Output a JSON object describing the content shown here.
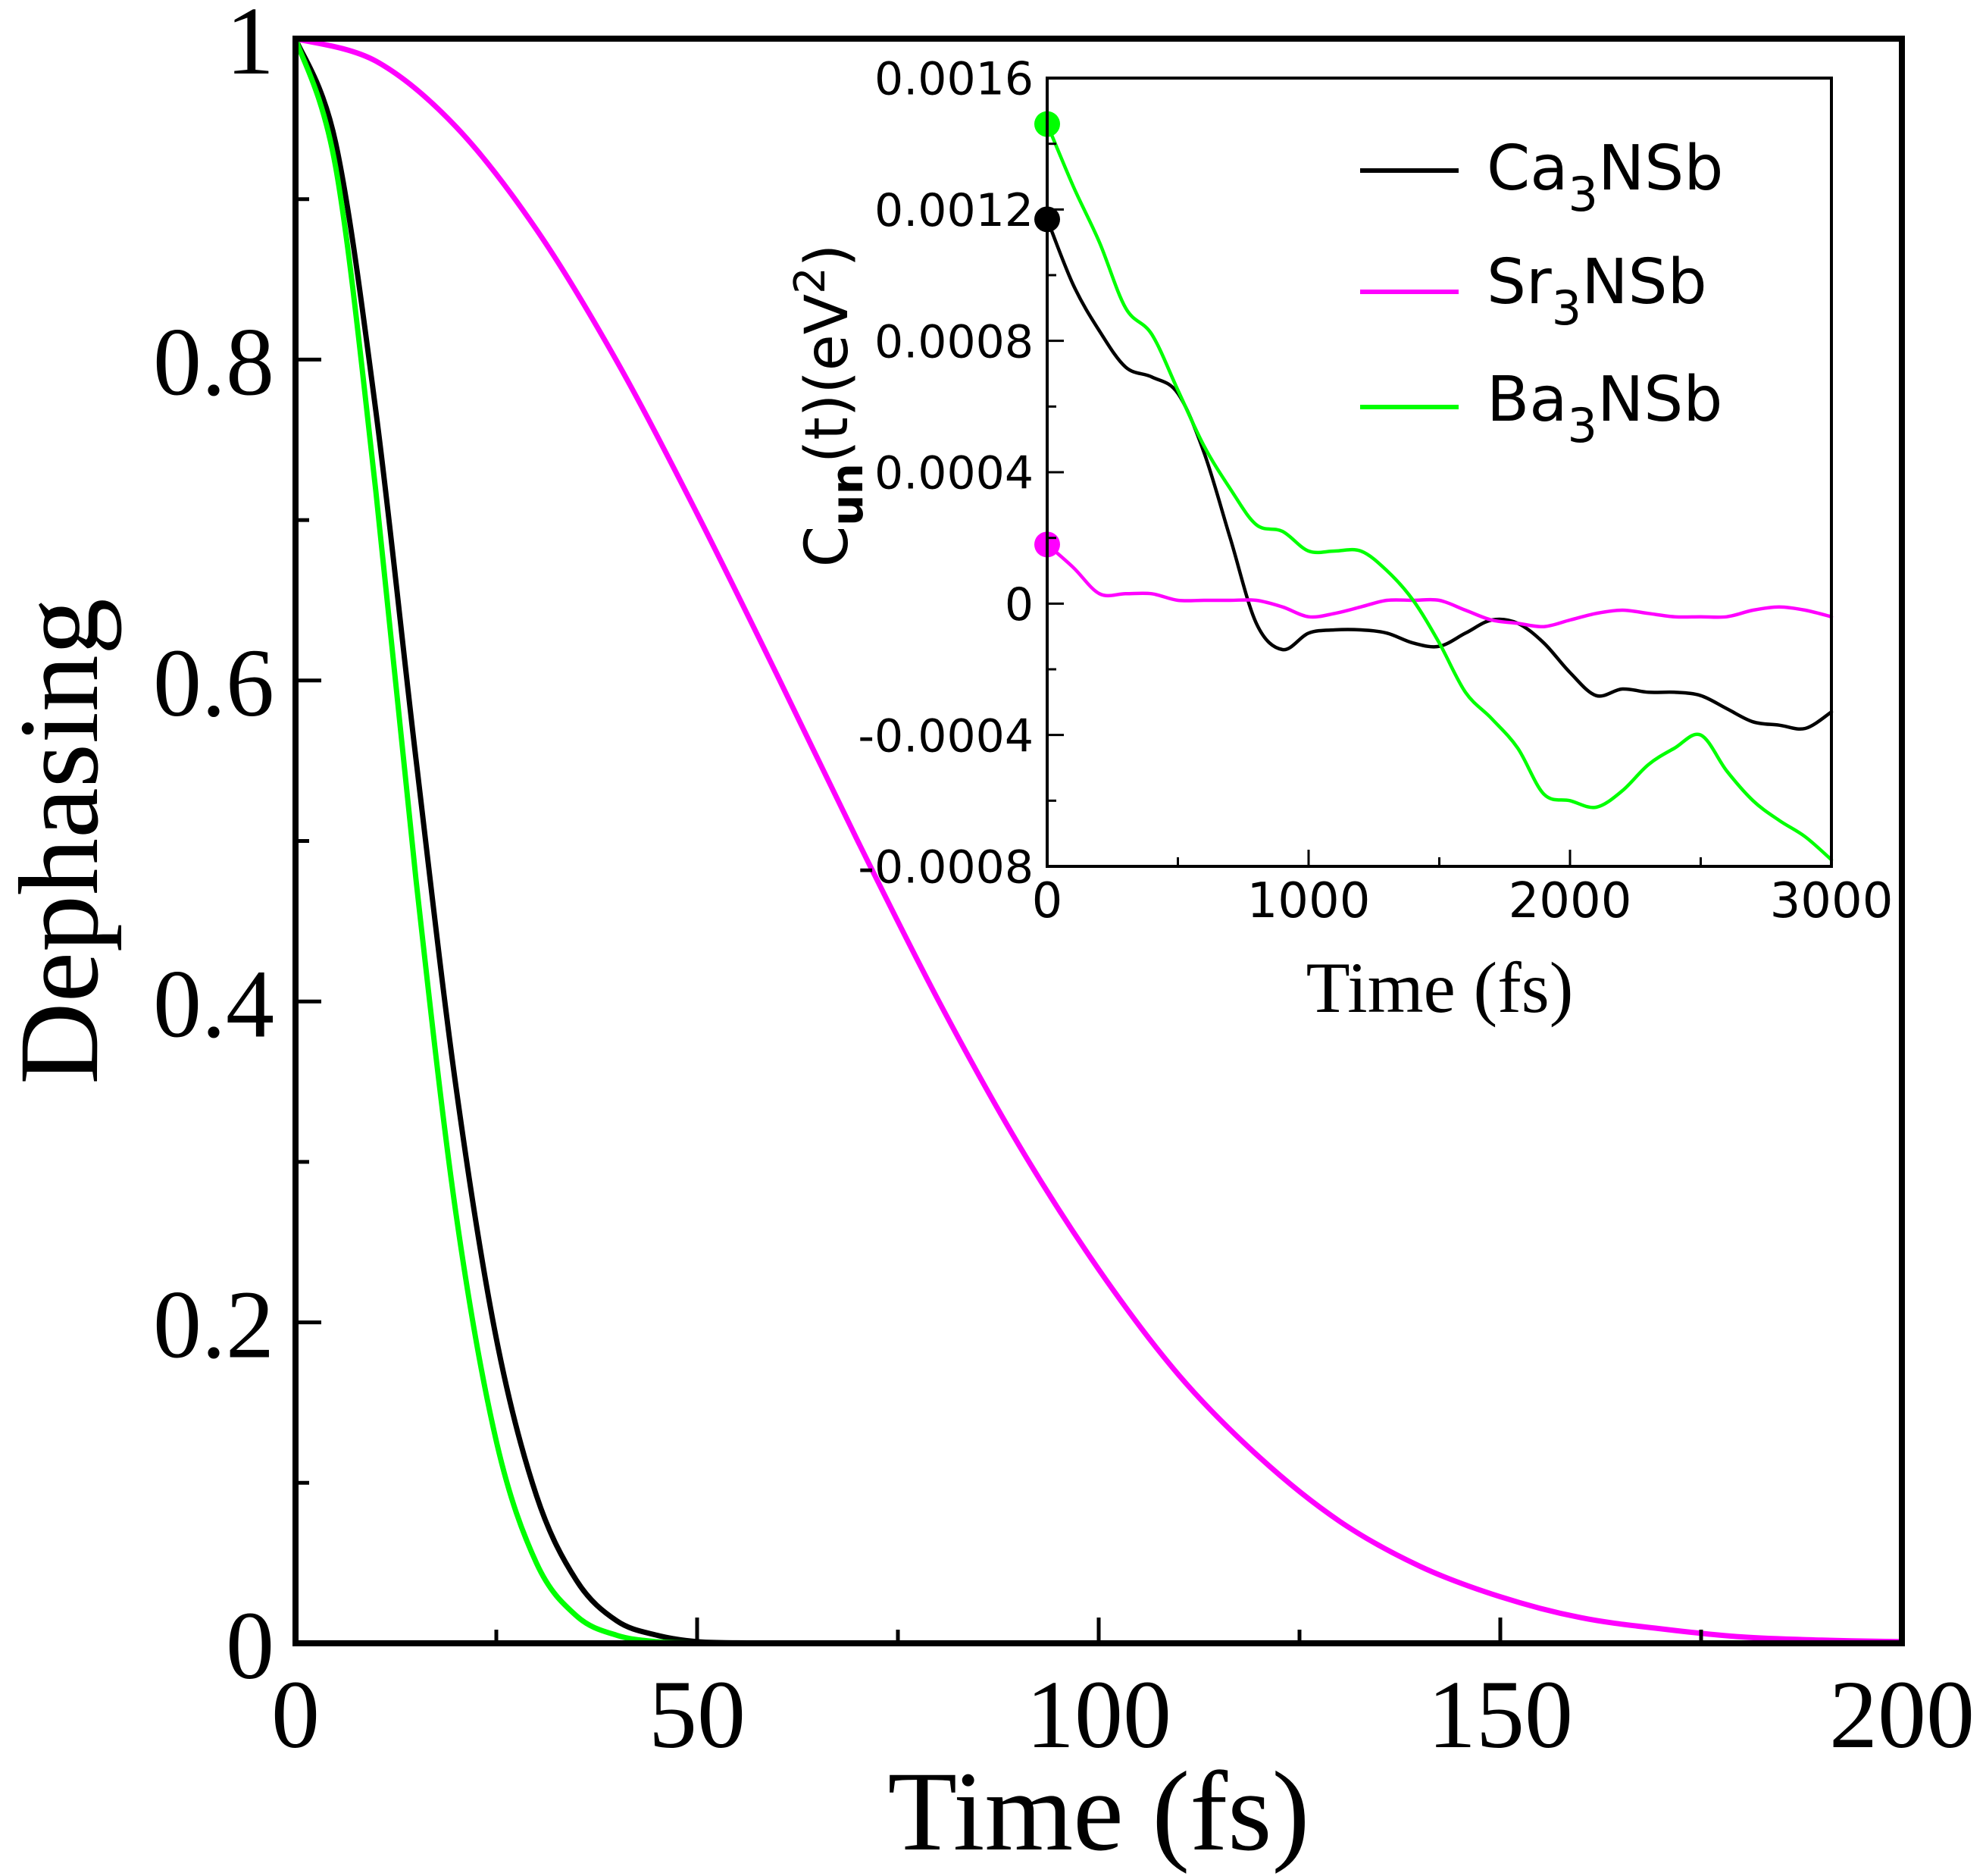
{
  "chart_data": [
    {
      "type": "line",
      "role": "main",
      "title": "",
      "xlabel": "Time (fs)",
      "ylabel": "Dephasing",
      "xlim": [
        0,
        200
      ],
      "ylim": [
        0,
        1
      ],
      "xticks": [
        0,
        50,
        100,
        150,
        200
      ],
      "xtick_labels": [
        "0",
        "50",
        "100",
        "150",
        "200"
      ],
      "yticks": [
        0,
        0.2,
        0.4,
        0.6,
        0.8,
        1
      ],
      "ytick_labels": [
        "0",
        "0.2",
        "0.4",
        "0.6",
        "0.8",
        "1"
      ],
      "grid": false,
      "series": [
        {
          "name": "Ca3NSb",
          "color": "#000000",
          "x": [
            0,
            5,
            10,
            15,
            20,
            25,
            30,
            35,
            40,
            45,
            50,
            55,
            60,
            65,
            70,
            75,
            80
          ],
          "values": [
            1.0,
            0.935,
            0.768,
            0.551,
            0.346,
            0.19,
            0.092,
            0.039,
            0.014,
            0.005,
            0.001,
            0.0003,
            0.0001,
            0,
            0,
            0,
            0
          ]
        },
        {
          "name": "Sr3NSb",
          "color": "#ff00ff",
          "x": [
            0,
            10,
            20,
            30,
            40,
            50,
            60,
            70,
            80,
            90,
            100,
            110,
            120,
            130,
            140,
            150,
            160,
            170,
            180,
            190,
            200
          ],
          "values": [
            1.0,
            0.986,
            0.945,
            0.881,
            0.799,
            0.704,
            0.603,
            0.5,
            0.401,
            0.311,
            0.233,
            0.167,
            0.116,
            0.076,
            0.048,
            0.029,
            0.016,
            0.009,
            0.004,
            0.002,
            0.001
          ]
        },
        {
          "name": "Ba3NSb",
          "color": "#00ff00",
          "x": [
            0,
            5,
            10,
            15,
            20,
            25,
            30,
            35,
            40,
            45,
            50,
            55,
            60,
            65,
            70
          ],
          "values": [
            1.0,
            0.92,
            0.718,
            0.476,
            0.267,
            0.126,
            0.05,
            0.017,
            0.005,
            0.001,
            0.0002,
            0,
            0,
            0,
            0
          ]
        }
      ]
    },
    {
      "type": "line",
      "role": "inset",
      "title": "",
      "xlabel": "Time (fs)",
      "ylabel_main": "C",
      "ylabel_sub": "un",
      "ylabel_mid": "(t)(eV",
      "ylabel_sup": "2",
      "ylabel_end": ")",
      "xlim": [
        0,
        3000
      ],
      "ylim": [
        -0.0008,
        0.0016
      ],
      "xticks": [
        0,
        1000,
        2000,
        3000
      ],
      "xtick_labels": [
        "0",
        "1000",
        "2000",
        "3000"
      ],
      "yticks": [
        -0.0008,
        -0.0004,
        0,
        0.0004,
        0.0008,
        0.0012,
        0.0016
      ],
      "ytick_labels": [
        "-0.0008",
        "-0.0004",
        "0",
        "0.0004",
        "0.0008",
        "0.0012",
        "0.0016"
      ],
      "legend": {
        "position": "top-right",
        "entries": [
          {
            "base": "Ca",
            "sub": "3",
            "rest": "NSb",
            "color": "#000000"
          },
          {
            "base": "Sr",
            "sub": "3",
            "rest": "NSb",
            "color": "#ff00ff"
          },
          {
            "base": "Ba",
            "sub": "3",
            "rest": "NSb",
            "color": "#00ff00"
          }
        ]
      },
      "series": [
        {
          "name": "Ca3NSb",
          "color": "#000000",
          "x": [
            0,
            100,
            200,
            300,
            400,
            500,
            600,
            700,
            800,
            900,
            1000,
            1100,
            1200,
            1300,
            1400,
            1500,
            1600,
            1700,
            1800,
            1900,
            2000,
            2100,
            2200,
            2300,
            2400,
            2500,
            2600,
            2700,
            2800,
            2900,
            3000
          ],
          "values": [
            0.00117,
            0.00097,
            0.00083,
            0.00072,
            0.00069,
            0.00064,
            0.00046,
            0.0002,
            -6e-05,
            -0.00014,
            -9e-05,
            -8e-05,
            -8e-05,
            -9e-05,
            -0.00012,
            -0.00013,
            -9e-05,
            -5e-05,
            -6e-05,
            -0.00012,
            -0.00021,
            -0.00028,
            -0.00026,
            -0.00027,
            -0.00027,
            -0.00028,
            -0.00032,
            -0.00036,
            -0.00037,
            -0.00038,
            -0.00033
          ]
        },
        {
          "name": "Sr3NSb",
          "color": "#ff00ff",
          "x": [
            0,
            100,
            200,
            300,
            400,
            500,
            600,
            700,
            800,
            900,
            1000,
            1100,
            1200,
            1300,
            1400,
            1500,
            1600,
            1700,
            1800,
            1900,
            2000,
            2100,
            2200,
            2300,
            2400,
            2500,
            2600,
            2700,
            2800,
            2900,
            3000
          ],
          "values": [
            0.00018,
            0.00011,
            3e-05,
            3e-05,
            3e-05,
            1e-05,
            1e-05,
            1e-05,
            1e-05,
            -1e-05,
            -4e-05,
            -3e-05,
            -1e-05,
            1e-05,
            1e-05,
            1e-05,
            -2e-05,
            -5e-05,
            -6e-05,
            -7e-05,
            -5e-05,
            -3e-05,
            -2e-05,
            -3e-05,
            -4e-05,
            -4e-05,
            -4e-05,
            -2e-05,
            -1e-05,
            -2e-05,
            -4e-05
          ]
        },
        {
          "name": "Ba3NSb",
          "color": "#00ff00",
          "x": [
            0,
            100,
            200,
            300,
            400,
            500,
            600,
            700,
            800,
            900,
            1000,
            1100,
            1200,
            1300,
            1400,
            1500,
            1600,
            1700,
            1800,
            1900,
            2000,
            2100,
            2200,
            2300,
            2400,
            2500,
            2600,
            2700,
            2800,
            2900,
            3000
          ],
          "values": [
            0.00146,
            0.00127,
            0.0011,
            0.0009,
            0.00082,
            0.00065,
            0.00048,
            0.00035,
            0.00024,
            0.00022,
            0.00016,
            0.00016,
            0.00016,
            0.0001,
            1e-05,
            -0.00012,
            -0.00027,
            -0.00035,
            -0.00044,
            -0.00058,
            -0.0006,
            -0.00062,
            -0.00057,
            -0.00049,
            -0.00044,
            -0.0004,
            -0.00051,
            -0.0006,
            -0.00066,
            -0.00071,
            -0.00078
          ]
        }
      ],
      "start_markers": [
        {
          "series": "Ba3NSb",
          "x": 0,
          "y": 0.00146,
          "color": "#00ff00"
        },
        {
          "series": "Ca3NSb",
          "x": 0,
          "y": 0.00117,
          "color": "#000000"
        },
        {
          "series": "Sr3NSb",
          "x": 0,
          "y": 0.00018,
          "color": "#ff00ff"
        }
      ]
    }
  ]
}
